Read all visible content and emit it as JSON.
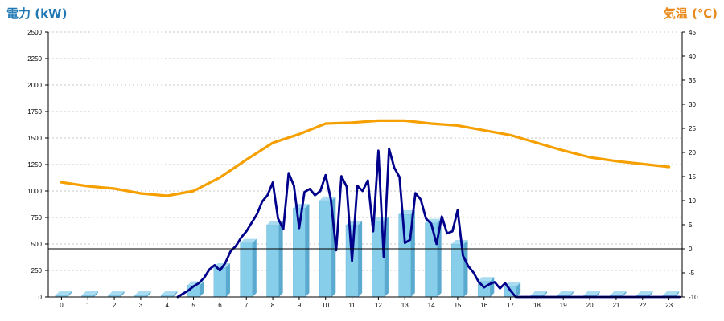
{
  "chart_data": {
    "type": "bar",
    "title": "",
    "ylabel_left": "電力 (kW)",
    "ylabel_right": "気温 (℃)",
    "colors": {
      "left_title": "#1f77b4",
      "right_title": "#e8891a",
      "bars": "#87ceeb",
      "bar_side": "#5aa9cf",
      "bar_top": "#a9dcf0",
      "power_line": "#00008b",
      "temp_line": "#f5a000",
      "grid": "#c8c8c8"
    },
    "left_axis": {
      "min": 0,
      "max": 2500,
      "ticks": [
        0,
        250,
        500,
        750,
        1000,
        1250,
        1500,
        1750,
        2000,
        2250,
        2500
      ]
    },
    "right_axis": {
      "min": -10,
      "max": 45,
      "ticks": [
        -10,
        -5,
        0,
        5,
        10,
        15,
        20,
        25,
        30,
        35,
        40,
        45
      ]
    },
    "x_ticks": [
      "0",
      "1",
      "2",
      "3",
      "4",
      "5",
      "6",
      "7",
      "8",
      "9",
      "10",
      "11",
      "12",
      "13",
      "14",
      "15",
      "16",
      "17",
      "18",
      "19",
      "20",
      "21",
      "22",
      "23"
    ],
    "grid": true,
    "series": [
      {
        "kind": "bar",
        "axis": "left",
        "values": [
          15,
          15,
          15,
          15,
          15,
          110,
          280,
          510,
          680,
          840,
          910,
          680,
          720,
          780,
          700,
          500,
          150,
          100,
          15,
          15,
          15,
          15,
          15,
          15
        ]
      },
      {
        "kind": "line",
        "axis": "left",
        "x": [
          4.4,
          4.6,
          4.8,
          5.0,
          5.2,
          5.4,
          5.6,
          5.8,
          6.0,
          6.2,
          6.4,
          6.6,
          6.8,
          7.0,
          7.2,
          7.4,
          7.6,
          7.8,
          8.0,
          8.2,
          8.4,
          8.6,
          8.8,
          9.0,
          9.2,
          9.4,
          9.6,
          9.8,
          10.0,
          10.2,
          10.4,
          10.6,
          10.8,
          11.0,
          11.2,
          11.4,
          11.6,
          11.8,
          12.0,
          12.2,
          12.4,
          12.6,
          12.8,
          13.0,
          13.2,
          13.4,
          13.6,
          13.8,
          14.0,
          14.2,
          14.4,
          14.6,
          14.8,
          15.0,
          15.2,
          15.4,
          15.6,
          15.8,
          16.0,
          16.2,
          16.4,
          16.6,
          16.8,
          17.0,
          17.2,
          17.4,
          17.6,
          18.0,
          18.5,
          19.0,
          20.0,
          21.0,
          22.0,
          23.0,
          23.4
        ],
        "values": [
          0,
          30,
          60,
          100,
          130,
          180,
          260,
          300,
          250,
          320,
          430,
          480,
          560,
          620,
          700,
          780,
          900,
          960,
          1080,
          740,
          640,
          1170,
          1050,
          650,
          990,
          1020,
          960,
          1000,
          1150,
          920,
          440,
          1140,
          1040,
          340,
          1050,
          1000,
          1100,
          620,
          1380,
          380,
          1400,
          1220,
          1130,
          510,
          540,
          980,
          920,
          740,
          690,
          500,
          760,
          600,
          620,
          820,
          390,
          290,
          230,
          140,
          90,
          120,
          140,
          80,
          130,
          60,
          0,
          0,
          0,
          0,
          0,
          0,
          0,
          0,
          0,
          0,
          0
        ]
      },
      {
        "kind": "line",
        "axis": "right",
        "x": [
          0,
          1,
          2,
          3,
          4,
          5,
          6,
          7,
          8,
          9,
          10,
          11,
          12,
          13,
          14,
          15,
          16,
          17,
          18,
          19,
          20,
          21,
          22,
          23
        ],
        "values": [
          13.8,
          13.0,
          12.5,
          11.5,
          11.0,
          12.0,
          14.8,
          18.5,
          22.0,
          23.8,
          26.0,
          26.2,
          26.6,
          26.6,
          26.0,
          25.6,
          24.6,
          23.6,
          22.0,
          20.4,
          19.0,
          18.2,
          17.6,
          17.0
        ]
      }
    ]
  }
}
